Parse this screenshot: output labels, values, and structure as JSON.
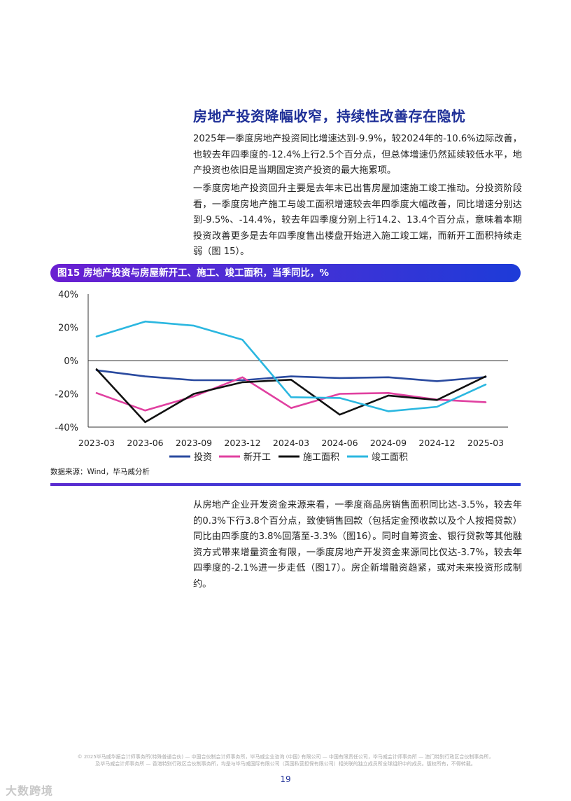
{
  "section": {
    "title": "房地产投资降幅收窄，持续性改善存在隐忧",
    "paragraph1": "2025年一季度房地产投资同比增速达到-9.9%，较2024年的-10.6%边际改善，也较去年四季度的-12.4%上行2.5个百分点，但总体增速仍然延续较低水平，地产投资也依旧是当期固定资产投资的最大拖累项。",
    "paragraph2": "一季度房地产投资回升主要是去年末已出售房屋加速施工竣工推动。分投资阶段看，一季度房地产施工与竣工面积增速较去年四季度大幅改善，同比增速分别达到-9.5%、-14.4%，较去年四季度分别上行14.2、13.4个百分点，意味着本期投资改善更多是去年四季度售出楼盘开始进入施工竣工端，而新开工面积持续走弱（图 15）。",
    "paragraph3": "从房地产企业开发资金来源来看，一季度商品房销售面积同比达-3.5%，较去年的0.3%下行3.8个百分点，致使销售回款（包括定金预收款以及个人按揭贷款）同比由四季度的3.8%回落至-3.3%（图16）。同时自筹资金、银行贷款等其他融资方式带来增量资金有限，一季度房地产开发资金来源同比仅达-3.7%，较去年四季度的-2.1%进一步走低（图17）。房企新增融资趋紧，或对未来投资形成制约。"
  },
  "figure": {
    "title": "图15 房地产投资与房屋新开工、施工、竣工面积，当季同比，%",
    "source": "数据来源：Wind，毕马威分析"
  },
  "chart_data": {
    "type": "line",
    "title": "图15 房地产投资与房屋新开工、施工、竣工面积，当季同比，%",
    "categories": [
      "2023-03",
      "2023-06",
      "2023-09",
      "2023-12",
      "2024-03",
      "2024-06",
      "2024-09",
      "2024-12",
      "2025-03"
    ],
    "y_ticks": [
      "40%",
      "20%",
      "0%",
      "-20%",
      "-40%"
    ],
    "ylim": [
      -40,
      40
    ],
    "legend_position": "bottom",
    "series": [
      {
        "name": "投资",
        "color": "#2a4a9f",
        "values": [
          -5.8,
          -9.5,
          -11.8,
          -11.8,
          -9.5,
          -10.5,
          -10.0,
          -12.4,
          -9.9
        ]
      },
      {
        "name": "新开工",
        "color": "#e040a0",
        "values": [
          -19.5,
          -30.0,
          -21.5,
          -10.0,
          -28.5,
          -20.0,
          -19.5,
          -23.5,
          -25.0
        ]
      },
      {
        "name": "施工面积",
        "color": "#111111",
        "values": [
          -5.2,
          -37.0,
          -20.0,
          -13.0,
          -11.5,
          -32.5,
          -21.0,
          -23.7,
          -9.5
        ]
      },
      {
        "name": "竣工面积",
        "color": "#2bb7e0",
        "values": [
          14.5,
          23.5,
          21.0,
          12.5,
          -22.0,
          -22.5,
          -30.5,
          -27.8,
          -14.4
        ]
      }
    ]
  },
  "footer": {
    "legal_line1": "© 2025毕马威华振会计师事务所(特殊普通合伙) — 中国合伙制会计师事务所，毕马威企业咨询 (中国) 有限公司 — 中国有限责任公司，毕马威会计师事务所 — 澳门特别行政区合伙制事务所，",
    "legal_line2": "及毕马威会计师事务所 — 香港特别行政区合伙制事务所，均是与毕马威国际有限公司（英国私营担保有限公司）相关联的独立成员所全球组织中的成员。版权所有，不得转载。",
    "page_number": "19"
  },
  "watermark": {
    "text": "大数跨境"
  }
}
